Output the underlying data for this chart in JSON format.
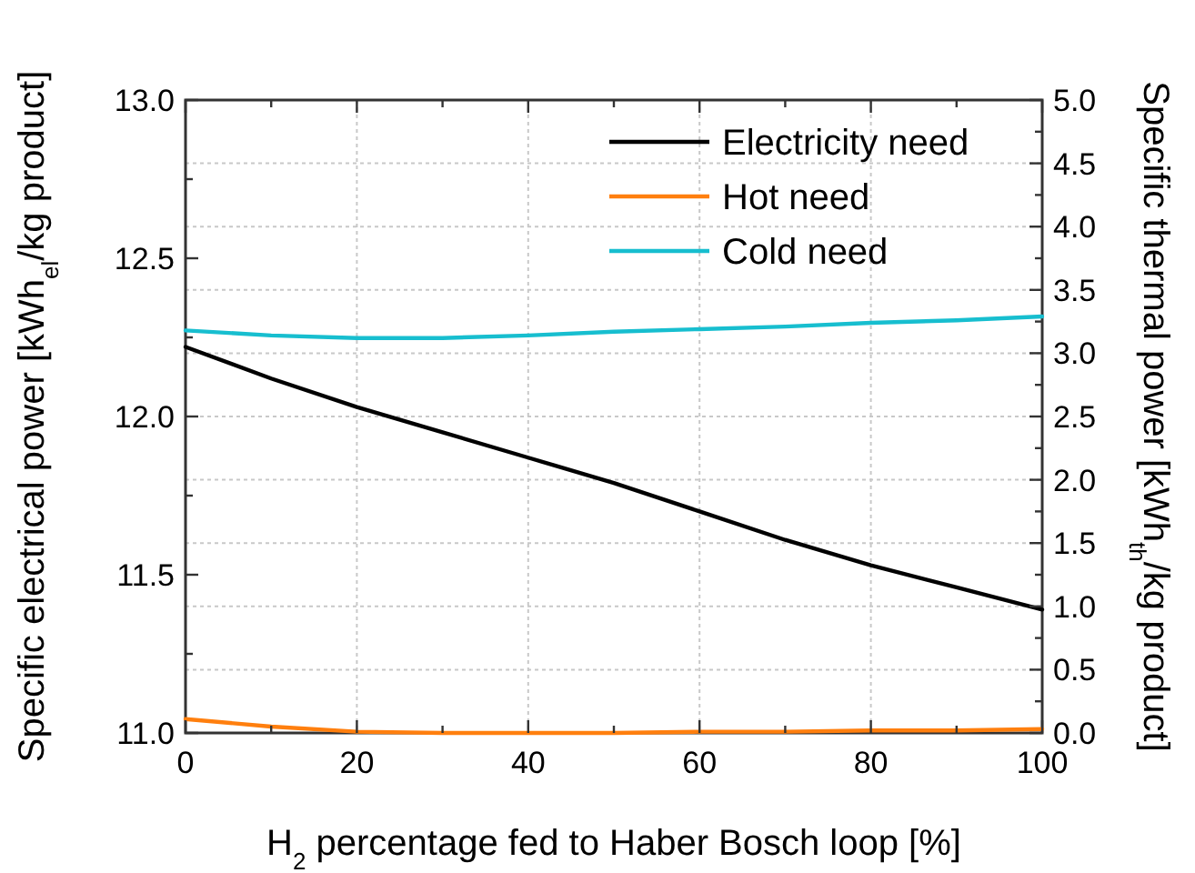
{
  "chart_data": {
    "type": "line",
    "xlabel": "H$_{2}$ percentage fed to Haber Bosch loop [%]",
    "ylabel": "Specific electrical power [kWh$_{el}$/kg product]",
    "y2label": "Specific thermal power [kWh$_{th}$/kg product]",
    "x": [
      0,
      10,
      20,
      30,
      40,
      50,
      60,
      70,
      80,
      90,
      100
    ],
    "series": [
      {
        "name": "Electricity need",
        "color": "#000000",
        "values": [
          12.22,
          12.12,
          12.03,
          11.95,
          11.87,
          11.79,
          11.7,
          11.61,
          11.53,
          11.46,
          11.39
        ]
      },
      {
        "name": "Hot need",
        "color": "#ff7f0e",
        "axis": "y2",
        "values": [
          0.11,
          0.05,
          0.01,
          0.0,
          0.0,
          0.0,
          0.01,
          0.01,
          0.02,
          0.02,
          0.03
        ]
      },
      {
        "name": "Cold need",
        "color": "#17becf",
        "axis": "y2",
        "values": [
          3.18,
          3.14,
          3.12,
          3.12,
          3.14,
          3.17,
          3.19,
          3.21,
          3.24,
          3.26,
          3.29
        ]
      }
    ],
    "xlim": [
      0,
      100
    ],
    "xticks": [
      0,
      {
        "value": 10,
        "label": null
      },
      20,
      {
        "value": 30,
        "label": null
      },
      40,
      {
        "value": 50,
        "label": null
      },
      60,
      {
        "value": 70,
        "label": null
      },
      80,
      {
        "value": 90,
        "label": null
      },
      100
    ],
    "ylim": [
      11.0,
      13.0
    ],
    "yticks": [
      {
        "value": 11,
        "label": "11.0"
      },
      {
        "value": 11.25,
        "label": null
      },
      11.5,
      {
        "value": 11.75,
        "label": null
      },
      {
        "value": 12,
        "label": "12.0"
      },
      {
        "value": 12.25,
        "label": null
      },
      12.5,
      {
        "value": 12.75,
        "label": null
      },
      {
        "value": 13,
        "label": "13.0"
      }
    ],
    "y2lim": [
      0,
      5
    ],
    "y2ticks": [
      {
        "value": 0,
        "label": "0.0"
      },
      {
        "value": 0.25,
        "label": null
      },
      0.5,
      {
        "value": 0.75,
        "label": null
      },
      {
        "value": 1,
        "label": "1.0"
      },
      {
        "value": 1.25,
        "label": null
      },
      1.5,
      {
        "value": 1.75,
        "label": null
      },
      {
        "value": 2,
        "label": "2.0"
      },
      {
        "value": 2.25,
        "label": null
      },
      2.5,
      {
        "value": 2.75,
        "label": null
      },
      {
        "value": 3,
        "label": "3.0"
      },
      {
        "value": 3.25,
        "label": null
      },
      3.5,
      {
        "value": 3.75,
        "label": null
      },
      {
        "value": 4,
        "label": "4.0"
      },
      {
        "value": 4.25,
        "label": null
      },
      4.5,
      {
        "value": 4.75,
        "label": null
      },
      {
        "value": 5,
        "label": "5.0"
      }
    ],
    "grid": true,
    "legend": "top right",
    "line_style": "solid"
  }
}
